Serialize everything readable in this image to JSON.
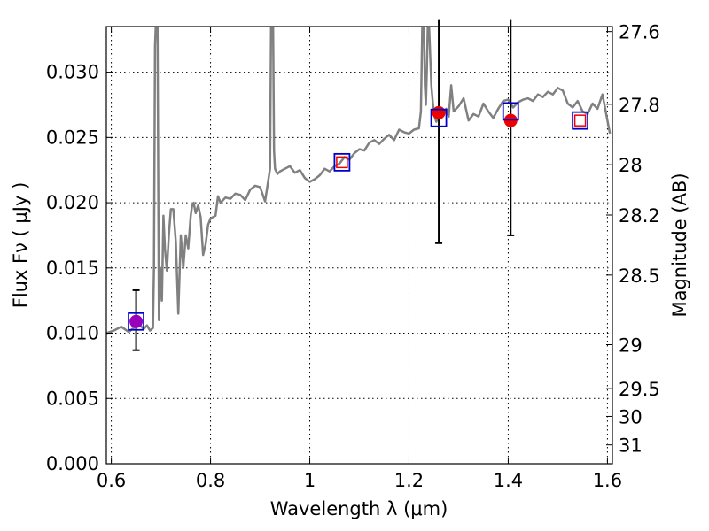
{
  "chart_data": {
    "type": "line",
    "xlabel": "Wavelength  λ (μm)",
    "ylabel": "Flux  Fν  ( μJy )",
    "y2label": "Magnitude (AB)",
    "xlim": [
      0.59,
      1.61
    ],
    "ylim": [
      0.0,
      0.0335
    ],
    "x_ticks": [
      0.6,
      0.8,
      1.0,
      1.2,
      1.4,
      1.6
    ],
    "x_tick_labels": [
      "0.6",
      "0.8",
      "1",
      "1.2",
      "1.4",
      "1.6"
    ],
    "y_ticks": [
      0.0,
      0.005,
      0.01,
      0.015,
      0.02,
      0.025,
      0.03
    ],
    "y_tick_labels": [
      "0.000",
      "0.005",
      "0.010",
      "0.015",
      "0.020",
      "0.025",
      "0.030"
    ],
    "y2_ticks": [
      27.6,
      27.8,
      28,
      28.2,
      28.5,
      29,
      29.5,
      30,
      31
    ],
    "y2_tick_labels": [
      "27.6",
      "27.8",
      "28",
      "28.2",
      "28.5",
      "29",
      "29.5",
      "30",
      "31"
    ],
    "grid": true,
    "colors": {
      "spectrum": "#808080",
      "model": "#0000cc",
      "observed": "#ee0000",
      "blend": "#9900bb",
      "errorbar": "#000000"
    },
    "series": [
      {
        "type": "line",
        "x": [
          0.59,
          0.605,
          0.62,
          0.635,
          0.645,
          0.655,
          0.665,
          0.672,
          0.678,
          0.684,
          0.686,
          0.688,
          0.69,
          0.693,
          0.696,
          0.699,
          0.702,
          0.705,
          0.708,
          0.712,
          0.716,
          0.72,
          0.725,
          0.73,
          0.735,
          0.74,
          0.745,
          0.75,
          0.755,
          0.76,
          0.763,
          0.766,
          0.77,
          0.775,
          0.78,
          0.785,
          0.79,
          0.795,
          0.8,
          0.81,
          0.815,
          0.82,
          0.83,
          0.84,
          0.85,
          0.86,
          0.87,
          0.88,
          0.89,
          0.9,
          0.91,
          0.92,
          0.922,
          0.924,
          0.926,
          0.928,
          0.93,
          0.935,
          0.94,
          0.95,
          0.96,
          0.97,
          0.98,
          0.99,
          1.0,
          1.01,
          1.02,
          1.03,
          1.04,
          1.05,
          1.06,
          1.07,
          1.08,
          1.09,
          1.1,
          1.11,
          1.12,
          1.13,
          1.14,
          1.15,
          1.16,
          1.17,
          1.18,
          1.19,
          1.2,
          1.21,
          1.22,
          1.224,
          1.227,
          1.23,
          1.232,
          1.234,
          1.236,
          1.238,
          1.24,
          1.245,
          1.25,
          1.255,
          1.26,
          1.265,
          1.27,
          1.275,
          1.28,
          1.285,
          1.29,
          1.3,
          1.31,
          1.32,
          1.33,
          1.34,
          1.35,
          1.36,
          1.37,
          1.38,
          1.39,
          1.4,
          1.41,
          1.42,
          1.43,
          1.44,
          1.45,
          1.46,
          1.47,
          1.48,
          1.49,
          1.5,
          1.51,
          1.52,
          1.53,
          1.54,
          1.55,
          1.56,
          1.57,
          1.58,
          1.59,
          1.6,
          1.605
        ],
        "y": [
          0.01,
          0.0102,
          0.0105,
          0.0101,
          0.0104,
          0.0108,
          0.0103,
          0.0106,
          0.0102,
          0.0104,
          0.015,
          0.032,
          0.034,
          0.034,
          0.011,
          0.015,
          0.0125,
          0.019,
          0.0165,
          0.0148,
          0.0175,
          0.0195,
          0.0195,
          0.017,
          0.0115,
          0.0175,
          0.015,
          0.0175,
          0.0165,
          0.019,
          0.0198,
          0.02,
          0.0192,
          0.0198,
          0.0189,
          0.016,
          0.0168,
          0.0183,
          0.0188,
          0.019,
          0.0205,
          0.02,
          0.0204,
          0.0203,
          0.0207,
          0.0206,
          0.0202,
          0.021,
          0.0213,
          0.0212,
          0.0201,
          0.0226,
          0.034,
          0.034,
          0.034,
          0.024,
          0.0226,
          0.0222,
          0.0224,
          0.0226,
          0.0228,
          0.0223,
          0.0225,
          0.0219,
          0.0216,
          0.0218,
          0.0221,
          0.0226,
          0.0224,
          0.0228,
          0.023,
          0.0235,
          0.0233,
          0.0238,
          0.0241,
          0.024,
          0.0246,
          0.0248,
          0.0245,
          0.0249,
          0.0252,
          0.0248,
          0.0256,
          0.0254,
          0.0253,
          0.0256,
          0.0257,
          0.027,
          0.034,
          0.034,
          0.029,
          0.0275,
          0.03,
          0.034,
          0.034,
          0.029,
          0.0268,
          0.0262,
          0.0267,
          0.027,
          0.0268,
          0.0272,
          0.0266,
          0.029,
          0.027,
          0.0274,
          0.028,
          0.0263,
          0.0268,
          0.0266,
          0.0276,
          0.027,
          0.0265,
          0.0272,
          0.0278,
          0.0279,
          0.0273,
          0.0277,
          0.0279,
          0.028,
          0.0278,
          0.0283,
          0.0281,
          0.0285,
          0.0283,
          0.0288,
          0.0286,
          0.0276,
          0.0273,
          0.0278,
          0.027,
          0.0268,
          0.0276,
          0.0272,
          0.0283,
          0.0263,
          0.0253
        ]
      },
      {
        "type": "model_boxes",
        "x": [
          0.65,
          1.065,
          1.26,
          1.405,
          1.545
        ],
        "y": [
          0.0109,
          0.0231,
          0.0265,
          0.027,
          0.0263
        ]
      },
      {
        "type": "observed_points",
        "x": [
          0.65,
          1.26,
          1.405
        ],
        "y": [
          0.0109,
          0.0269,
          0.0263
        ],
        "colors": [
          "#9900bb",
          "#ee0000",
          "#ee0000"
        ],
        "err_lo": [
          0.0087,
          0.0169,
          0.0175
        ],
        "err_hi": [
          0.0133,
          0.034,
          0.034
        ]
      },
      {
        "type": "upper_limits",
        "x": [
          1.065,
          1.545
        ],
        "y": [
          0.0231,
          0.0263
        ]
      }
    ]
  }
}
